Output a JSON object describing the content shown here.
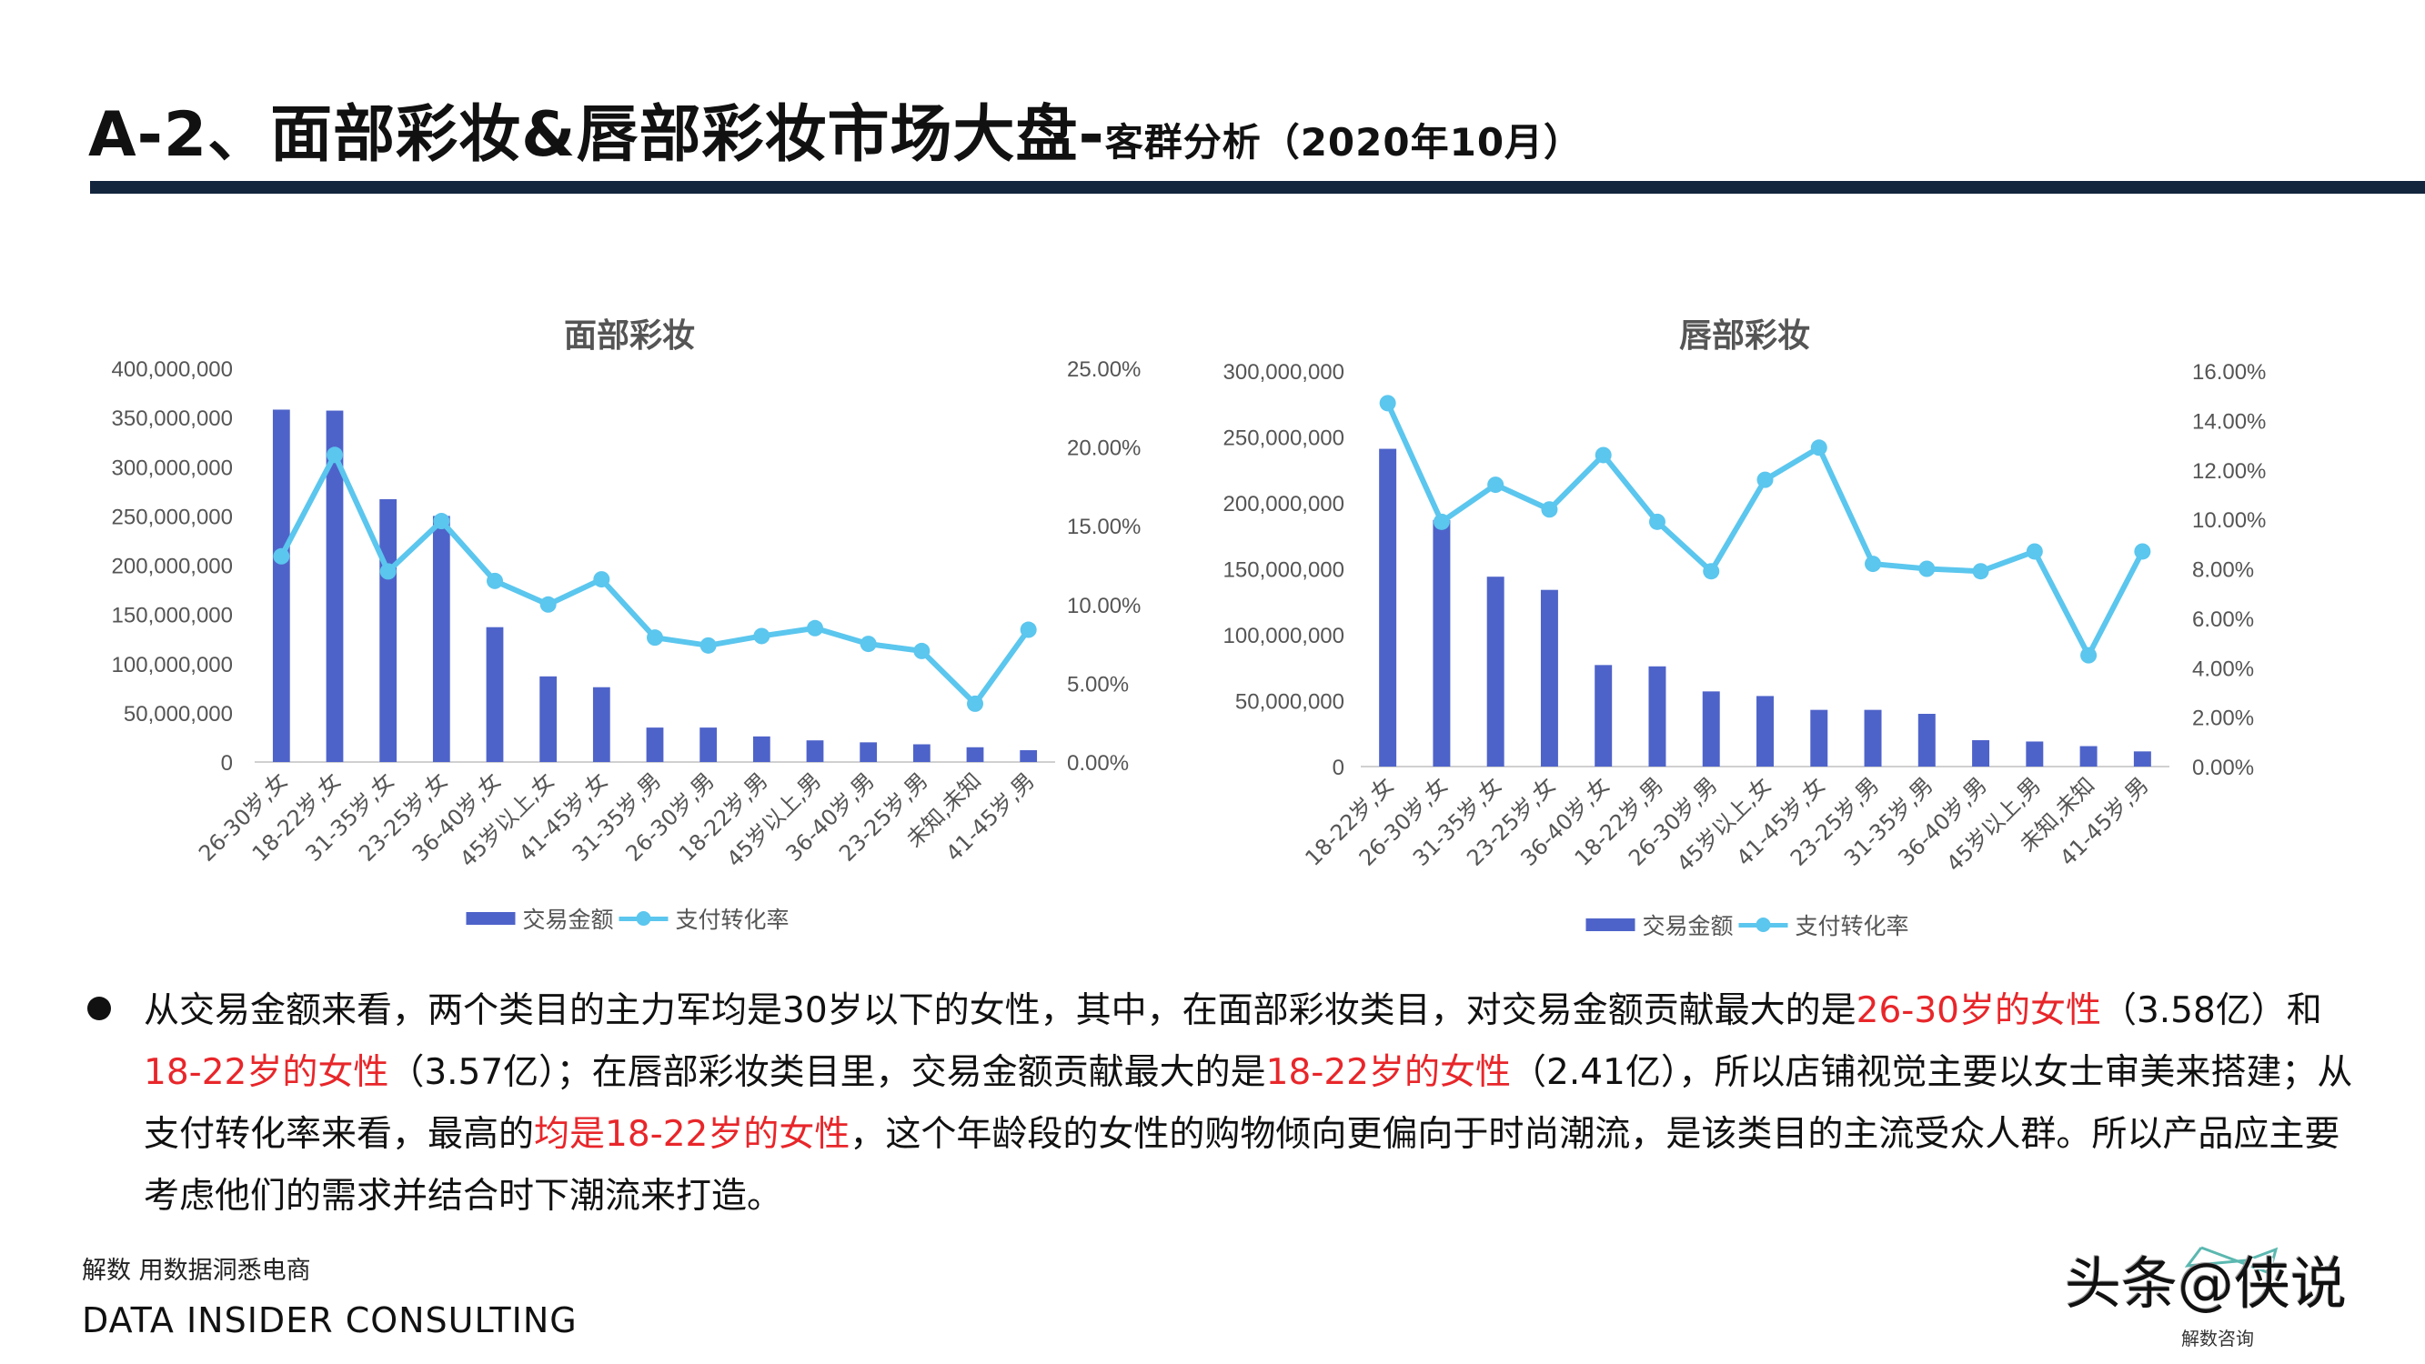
{
  "header": {
    "title_main": "A-2、面部彩妆&唇部彩妆市场大盘-",
    "title_sub": "客群分析（2020年10月）"
  },
  "colors": {
    "bar": "#4e63c9",
    "line": "#5bc6ee",
    "rule": "#13253d",
    "highlight": "#e8262a"
  },
  "chart_data": [
    {
      "type": "bar+line",
      "title": "面部彩妆",
      "categories": [
        "26-30岁,女",
        "18-22岁,女",
        "31-35岁,女",
        "23-25岁,女",
        "36-40岁,女",
        "45岁以上,女",
        "41-45岁,女",
        "31-35岁,男",
        "26-30岁,男",
        "18-22岁,男",
        "45岁以上,男",
        "36-40岁,男",
        "23-25岁,男",
        "未知,未知",
        "41-45岁,男"
      ],
      "series": [
        {
          "name": "交易金额",
          "type": "bar",
          "axis": "left",
          "values": [
            358000000,
            357000000,
            267000000,
            250000000,
            137000000,
            87000000,
            76000000,
            35000000,
            35000000,
            26000000,
            22000000,
            20000000,
            18000000,
            15000000,
            12000000
          ]
        },
        {
          "name": "支付转化率",
          "type": "line",
          "axis": "right",
          "values": [
            0.1306,
            0.195,
            0.121,
            0.153,
            0.115,
            0.1,
            0.116,
            0.079,
            0.074,
            0.08,
            0.085,
            0.075,
            0.0705,
            0.037,
            0.084
          ]
        }
      ],
      "y_left": {
        "range": [
          0,
          400000000
        ],
        "ticks": [
          "0",
          "50,000,000",
          "100,000,000",
          "150,000,000",
          "200,000,000",
          "250,000,000",
          "300,000,000",
          "350,000,000",
          "400,000,000"
        ]
      },
      "y_right": {
        "range": [
          0,
          0.25
        ],
        "ticks": [
          "0.00%",
          "5.00%",
          "10.00%",
          "15.00%",
          "20.00%",
          "25.00%"
        ]
      },
      "grid": false,
      "legend": "bottom"
    },
    {
      "type": "bar+line",
      "title": "唇部彩妆",
      "categories": [
        "18-22岁,女",
        "26-30岁,女",
        "31-35岁,女",
        "23-25岁,女",
        "36-40岁,女",
        "18-22岁,男",
        "26-30岁,男",
        "45岁以上,女",
        "41-45岁,女",
        "23-25岁,男",
        "31-35岁,男",
        "36-40岁,男",
        "45岁以上,男",
        "未知,未知",
        "41-45岁,男"
      ],
      "series": [
        {
          "name": "交易金额",
          "type": "bar",
          "axis": "left",
          "values": [
            241000000,
            187000000,
            144000000,
            134000000,
            77000000,
            76000000,
            57000000,
            53500000,
            43000000,
            43000000,
            40000000,
            20000000,
            19000000,
            15500000,
            11500000
          ]
        },
        {
          "name": "支付转化率",
          "type": "line",
          "axis": "right",
          "values": [
            0.147,
            0.099,
            0.114,
            0.104,
            0.126,
            0.099,
            0.079,
            0.116,
            0.129,
            0.082,
            0.08,
            0.079,
            0.087,
            0.045,
            0.087
          ]
        }
      ],
      "y_left": {
        "range": [
          0,
          300000000
        ],
        "ticks": [
          "0",
          "50,000,000",
          "100,000,000",
          "150,000,000",
          "200,000,000",
          "250,000,000",
          "300,000,000"
        ]
      },
      "y_right": {
        "range": [
          0,
          0.16
        ],
        "ticks": [
          "0.00%",
          "2.00%",
          "4.00%",
          "6.00%",
          "8.00%",
          "10.00%",
          "12.00%",
          "14.00%",
          "16.00%"
        ]
      },
      "grid": false,
      "legend": "bottom"
    }
  ],
  "body": {
    "segments": [
      {
        "text": "从交易金额来看，两个类目的主力军均是30岁以下的女性，其中，在面部彩妆类目，对交易金额贡献最大的是",
        "red": false
      },
      {
        "text": "26-30岁的女性",
        "red": true
      },
      {
        "text": "（3.58亿）和",
        "red": false
      },
      {
        "text": "18-22岁的女性",
        "red": true
      },
      {
        "text": "（3.57亿）；在唇部彩妆类目里，交易金额贡献最大的是",
        "red": false
      },
      {
        "text": "18-22岁的女性",
        "red": true
      },
      {
        "text": "（2.41亿），所以店铺视觉主要以女士审美来搭建；从支付转化率来看，最高的",
        "red": false
      },
      {
        "text": "均是18-22岁的女性",
        "red": true
      },
      {
        "text": "，这个年龄段的女性的购物倾向更偏向于时尚潮流，是该类目的主流受众人群。所以产品应主要考虑他们的需求并结合时下潮流来打造。",
        "red": false
      }
    ]
  },
  "footer": {
    "tagline": "解数 用数据洞悉电商",
    "company": "DATA INSIDER CONSULTING"
  },
  "watermark": {
    "text": "头条@侠说",
    "logo_text": "解数咨询"
  }
}
